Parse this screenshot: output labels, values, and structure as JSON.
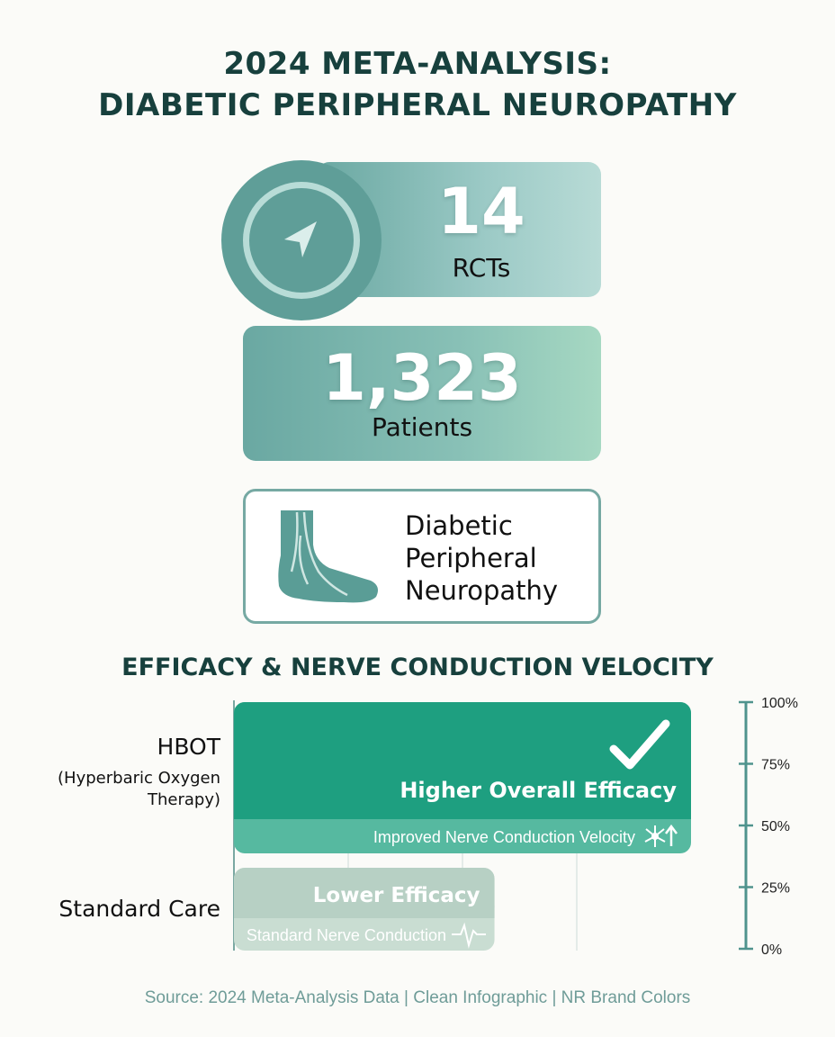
{
  "title": {
    "line1": "2024 META-ANALYSIS:",
    "line2": "DIABETIC PERIPHERAL NEUROPATHY"
  },
  "stats": {
    "rcts": {
      "value": "14",
      "label": "RCTs",
      "icon": "navigation-arrow-icon"
    },
    "patients": {
      "value": "1,323",
      "label": "Patients"
    },
    "condition": {
      "icon": "foot-nerves-icon",
      "lines": [
        "Diabetic",
        "Peripheral",
        "Neuropathy"
      ]
    }
  },
  "chart_section": {
    "title": "EFFICACY & NERVE CONDUCTION VELOCITY"
  },
  "colors": {
    "hbot": "#1e9f80",
    "hbot_light": "#56b9a0",
    "standard": "#b7d0c4",
    "standard_light": "#c9ddd2",
    "axis": "#4f938d",
    "title": "#17403d"
  },
  "chart_data": {
    "type": "bar",
    "orientation": "horizontal",
    "xlim": [
      0,
      100
    ],
    "ticks": [
      "100%",
      "75%",
      "50%",
      "25%",
      "0%"
    ],
    "grid": true,
    "series": [
      {
        "category": "HBOT",
        "category_sub": [
          "(Hyperbaric Oxygen",
          "Therapy)"
        ],
        "efficacy_label": "Higher Overall Efficacy",
        "conduction_label": "Improved Nerve Conduction Velocity",
        "value": 100,
        "icons": [
          "checkmark-icon",
          "nerve-up-icon"
        ]
      },
      {
        "category": "Standard Care",
        "category_sub": [],
        "efficacy_label": "Lower Efficacy",
        "conduction_label": "Standard Nerve Conduction",
        "value": 57,
        "icons": [
          "pulse-line-icon"
        ]
      }
    ]
  },
  "source": "Source: 2024 Meta-Analysis Data | Clean Infographic | NR Brand Colors"
}
